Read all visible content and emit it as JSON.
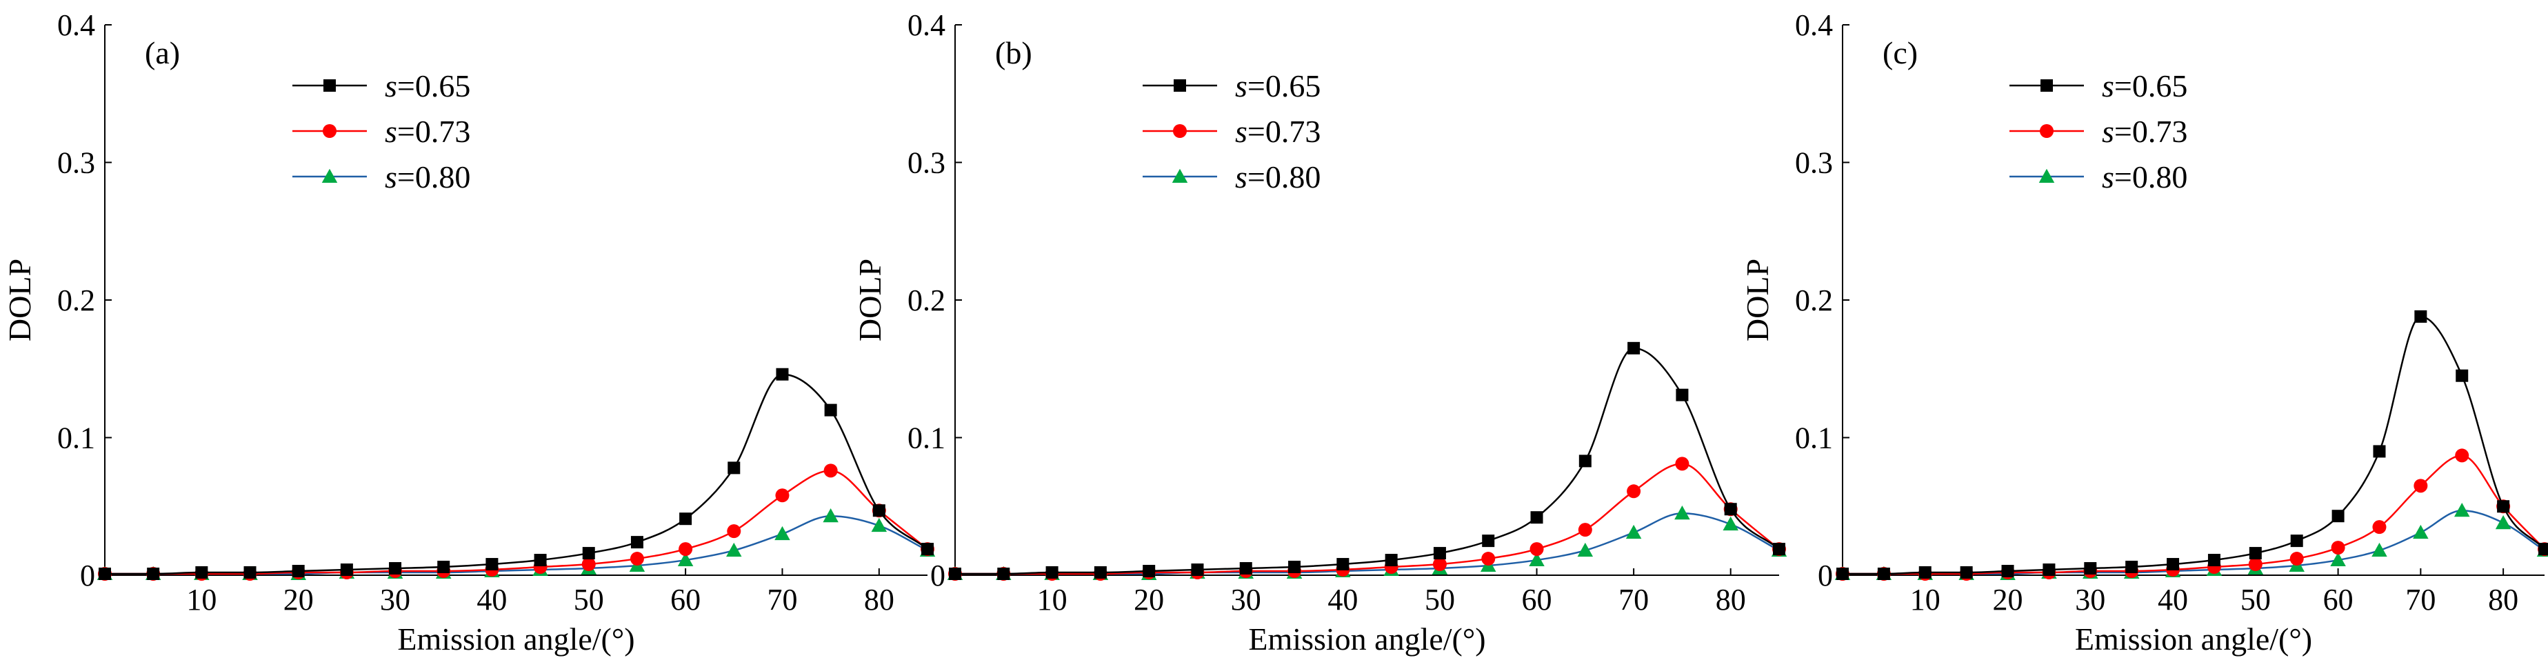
{
  "chart_data": [
    {
      "type": "line",
      "panel_label": "(a)",
      "xlabel": "Emission angle/(°)",
      "ylabel": "DOLP",
      "xlim": [
        0,
        85
      ],
      "ylim": [
        0,
        0.4
      ],
      "xticks": [
        10,
        20,
        30,
        40,
        50,
        60,
        70,
        80
      ],
      "yticks": [
        0,
        0.1,
        0.2,
        0.3,
        0.4
      ],
      "xtick_labels": [
        "10",
        "20",
        "30",
        "40",
        "50",
        "60",
        "70",
        "80"
      ],
      "ytick_labels": [
        "0",
        "0.1",
        "0.2",
        "0.3",
        "0.4"
      ],
      "legend_position": "top-left",
      "grid": false,
      "x": [
        0,
        5,
        10,
        15,
        20,
        25,
        30,
        35,
        40,
        45,
        50,
        55,
        60,
        65,
        70,
        75,
        80,
        85
      ],
      "series": [
        {
          "name": "s=0.65",
          "color": "#000000",
          "marker": "square",
          "values": [
            0.001,
            0.001,
            0.002,
            0.002,
            0.003,
            0.004,
            0.005,
            0.006,
            0.008,
            0.011,
            0.016,
            0.024,
            0.041,
            0.078,
            0.146,
            0.12,
            0.047,
            0.019
          ]
        },
        {
          "name": "s=0.73",
          "color": "#ff0000",
          "marker": "circle",
          "values": [
            0.001,
            0.001,
            0.001,
            0.001,
            0.002,
            0.002,
            0.003,
            0.003,
            0.004,
            0.006,
            0.008,
            0.012,
            0.019,
            0.032,
            0.058,
            0.076,
            0.047,
            0.019
          ]
        },
        {
          "name": "s=0.80",
          "color": "#00aa44",
          "line_color": "#1f5fa6",
          "marker": "triangle",
          "values": [
            0.001,
            0.001,
            0.001,
            0.001,
            0.001,
            0.002,
            0.002,
            0.002,
            0.003,
            0.004,
            0.005,
            0.007,
            0.011,
            0.018,
            0.03,
            0.043,
            0.036,
            0.018
          ]
        }
      ]
    },
    {
      "type": "line",
      "panel_label": "(b)",
      "xlabel": "Emission angle/(°)",
      "ylabel": "DOLP",
      "xlim": [
        0,
        85
      ],
      "ylim": [
        0,
        0.4
      ],
      "xticks": [
        10,
        20,
        30,
        40,
        50,
        60,
        70,
        80
      ],
      "yticks": [
        0,
        0.1,
        0.2,
        0.3,
        0.4
      ],
      "xtick_labels": [
        "10",
        "20",
        "30",
        "40",
        "50",
        "60",
        "70",
        "80"
      ],
      "ytick_labels": [
        "0",
        "0.1",
        "0.2",
        "0.3",
        "0.4"
      ],
      "legend_position": "top-left",
      "grid": false,
      "x": [
        0,
        5,
        10,
        15,
        20,
        25,
        30,
        35,
        40,
        45,
        50,
        55,
        60,
        65,
        70,
        75,
        80,
        85
      ],
      "series": [
        {
          "name": "s=0.65",
          "color": "#000000",
          "marker": "square",
          "values": [
            0.001,
            0.001,
            0.002,
            0.002,
            0.003,
            0.004,
            0.005,
            0.006,
            0.008,
            0.011,
            0.016,
            0.025,
            0.042,
            0.083,
            0.165,
            0.131,
            0.048,
            0.019
          ]
        },
        {
          "name": "s=0.73",
          "color": "#ff0000",
          "marker": "circle",
          "values": [
            0.001,
            0.001,
            0.001,
            0.001,
            0.002,
            0.002,
            0.003,
            0.003,
            0.004,
            0.006,
            0.008,
            0.012,
            0.019,
            0.033,
            0.061,
            0.081,
            0.048,
            0.019
          ]
        },
        {
          "name": "s=0.80",
          "color": "#00aa44",
          "line_color": "#1f5fa6",
          "marker": "triangle",
          "values": [
            0.001,
            0.001,
            0.001,
            0.001,
            0.001,
            0.002,
            0.002,
            0.002,
            0.003,
            0.004,
            0.005,
            0.007,
            0.011,
            0.018,
            0.031,
            0.045,
            0.037,
            0.018
          ]
        }
      ]
    },
    {
      "type": "line",
      "panel_label": "(c)",
      "xlabel": "Emission angle/(°)",
      "ylabel": "DOLP",
      "xlim": [
        0,
        85
      ],
      "ylim": [
        0,
        0.4
      ],
      "xticks": [
        10,
        20,
        30,
        40,
        50,
        60,
        70,
        80
      ],
      "yticks": [
        0,
        0.1,
        0.2,
        0.3,
        0.4
      ],
      "xtick_labels": [
        "10",
        "20",
        "30",
        "40",
        "50",
        "60",
        "70",
        "80"
      ],
      "ytick_labels": [
        "0",
        "0.1",
        "0.2",
        "0.3",
        "0.4"
      ],
      "legend_position": "top-left",
      "grid": false,
      "x": [
        0,
        5,
        10,
        15,
        20,
        25,
        30,
        35,
        40,
        45,
        50,
        55,
        60,
        65,
        70,
        75,
        80,
        85
      ],
      "series": [
        {
          "name": "s=0.65",
          "color": "#000000",
          "marker": "square",
          "values": [
            0.001,
            0.001,
            0.002,
            0.002,
            0.003,
            0.004,
            0.005,
            0.006,
            0.008,
            0.011,
            0.016,
            0.025,
            0.043,
            0.09,
            0.188,
            0.145,
            0.05,
            0.019
          ]
        },
        {
          "name": "s=0.73",
          "color": "#ff0000",
          "marker": "circle",
          "values": [
            0.001,
            0.001,
            0.001,
            0.001,
            0.002,
            0.002,
            0.003,
            0.003,
            0.004,
            0.006,
            0.008,
            0.012,
            0.02,
            0.035,
            0.065,
            0.087,
            0.05,
            0.019
          ]
        },
        {
          "name": "s=0.80",
          "color": "#00aa44",
          "line_color": "#1f5fa6",
          "marker": "triangle",
          "values": [
            0.001,
            0.001,
            0.001,
            0.001,
            0.001,
            0.002,
            0.002,
            0.002,
            0.003,
            0.004,
            0.005,
            0.007,
            0.011,
            0.018,
            0.031,
            0.047,
            0.038,
            0.018
          ]
        }
      ]
    }
  ]
}
